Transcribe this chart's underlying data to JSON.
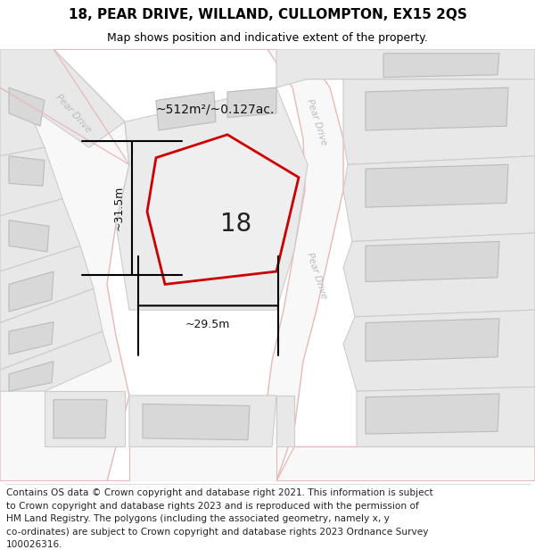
{
  "title": "18, PEAR DRIVE, WILLAND, CULLOMPTON, EX15 2QS",
  "subtitle": "Map shows position and indicative extent of the property.",
  "footer_line1": "Contains OS data © Crown copyright and database right 2021. This information is subject",
  "footer_line2": "to Crown copyright and database rights 2023 and is reproduced with the permission of",
  "footer_line3": "HM Land Registry. The polygons (including the associated geometry, namely x, y",
  "footer_line4": "co-ordinates) are subject to Crown copyright and database rights 2023 Ordnance Survey",
  "footer_line5": "100026316.",
  "map_bg": "#f7f7f7",
  "parcel_fill": "#e8e8e8",
  "parcel_edge": "#cccccc",
  "road_outline": "#e8b8b8",
  "road_fill": "#f8f8f8",
  "building_fill": "#d8d8d8",
  "building_edge": "#bbbbbb",
  "prop_color": "#cc0000",
  "prop_fill": "#f0efef",
  "area_text": "~512m²/~0.127ac.",
  "width_text": "~29.5m",
  "height_text": "~31.5m",
  "number_text": "18",
  "road_label": "Pear Drive",
  "title_fontsize": 11,
  "subtitle_fontsize": 9,
  "footer_fontsize": 7.6
}
